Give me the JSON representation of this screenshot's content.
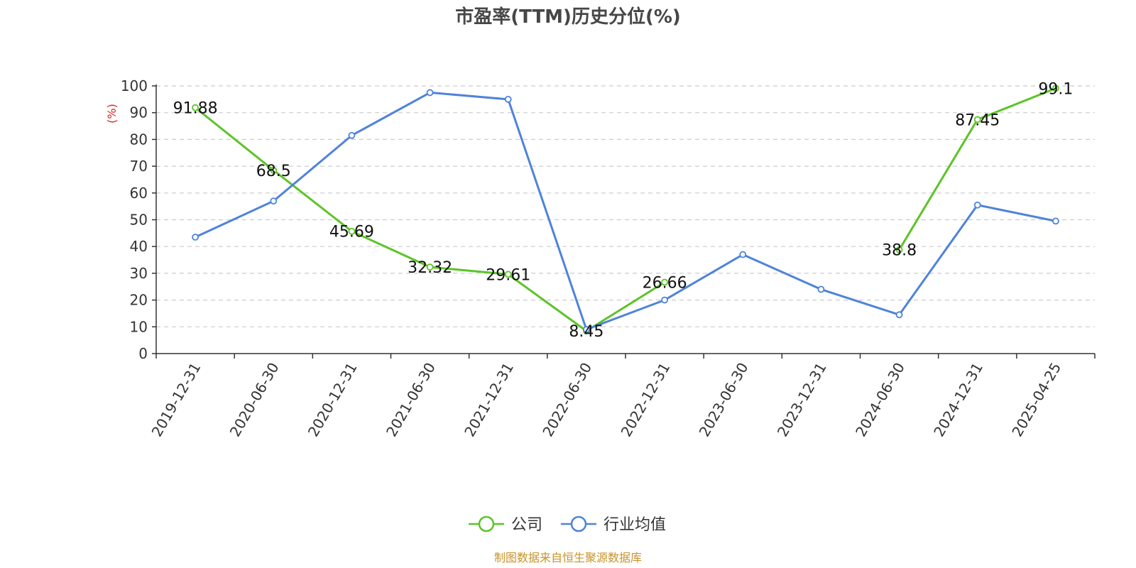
{
  "chart_data": {
    "type": "line",
    "title": "市盈率(TTM)历史分位(%)",
    "ylabel": "(%)",
    "ylim": [
      0,
      100
    ],
    "yticks": [
      0,
      10,
      20,
      30,
      40,
      50,
      60,
      70,
      80,
      90,
      100
    ],
    "categories": [
      "2019-12-31",
      "2020-06-30",
      "2020-12-31",
      "2021-06-30",
      "2021-12-31",
      "2022-06-30",
      "2022-12-31",
      "2023-06-30",
      "2023-12-31",
      "2024-06-30",
      "2024-12-31",
      "2025-04-25"
    ],
    "grid": true,
    "legend_position": "bottom",
    "series": [
      {
        "name": "公司",
        "color": "#5cc427",
        "values": [
          91.88,
          68.5,
          45.69,
          32.32,
          29.61,
          8.45,
          26.66,
          null,
          null,
          38.8,
          87.45,
          99.1
        ],
        "labels": [
          "91.88",
          "68.5",
          "45.69",
          "32.32",
          "29.61",
          "8.45",
          "26.66",
          "",
          "",
          "38.8",
          "87.45",
          "99.1"
        ]
      },
      {
        "name": "行业均值",
        "color": "#4e83db",
        "values": [
          43.5,
          57,
          81.5,
          97.5,
          95,
          9,
          20,
          37,
          24,
          14.5,
          55.5,
          49.5
        ]
      }
    ],
    "source": "制图数据来自恒生聚源数据库"
  }
}
